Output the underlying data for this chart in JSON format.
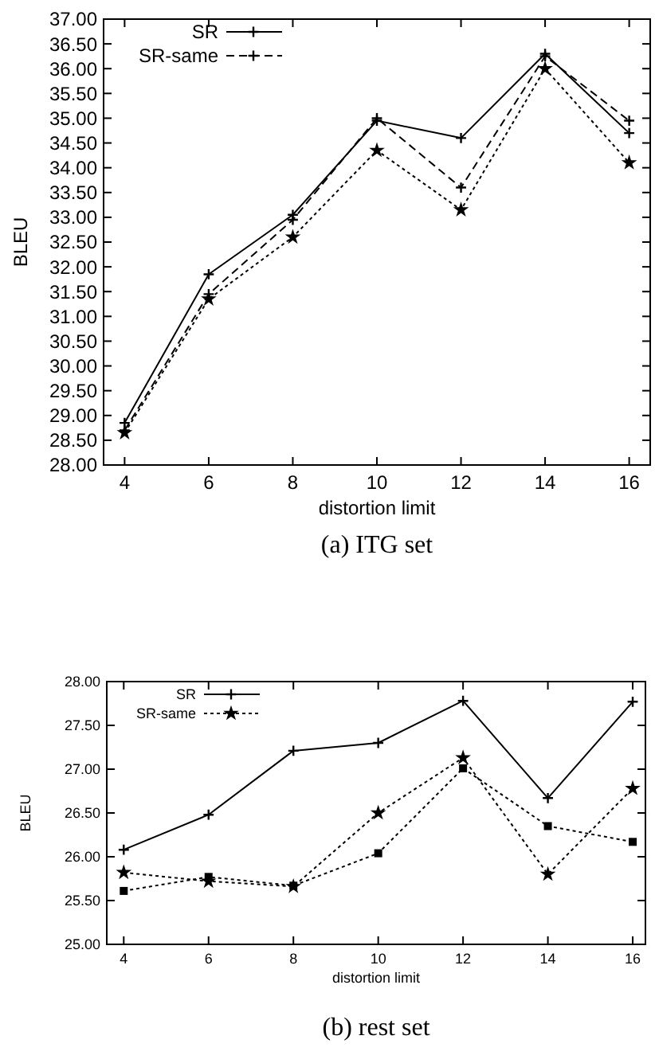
{
  "chart_data": [
    {
      "type": "line",
      "title": "(a)   ITG set",
      "xlabel": "distortion limit",
      "ylabel": "BLEU",
      "x": [
        4,
        6,
        8,
        10,
        12,
        14,
        16
      ],
      "xlim": [
        3.5,
        16.5
      ],
      "xticks": [
        4,
        6,
        8,
        10,
        12,
        14,
        16
      ],
      "ylim": [
        28,
        37
      ],
      "yticks": [
        {
          "value": 28,
          "label": "28.00"
        },
        {
          "value": 28.5,
          "label": "28.50"
        },
        {
          "value": 29,
          "label": "29.00"
        },
        {
          "value": 29.5,
          "label": "29.50"
        },
        {
          "value": 30,
          "label": "30.00"
        },
        {
          "value": 30.5,
          "label": "30.50"
        },
        {
          "value": 31,
          "label": "31.00"
        },
        {
          "value": 31.5,
          "label": "31.50"
        },
        {
          "value": 32,
          "label": "32.00"
        },
        {
          "value": 32.5,
          "label": "32.50"
        },
        {
          "value": 33,
          "label": "33.00"
        },
        {
          "value": 33.5,
          "label": "33.50"
        },
        {
          "value": 34,
          "label": "34.00"
        },
        {
          "value": 34.5,
          "label": "34.50"
        },
        {
          "value": 35,
          "label": "35.00"
        },
        {
          "value": 35.5,
          "label": "35.50"
        },
        {
          "value": 36,
          "label": "36.00"
        },
        {
          "value": 36.5,
          "label": "36.50"
        },
        {
          "value": 37,
          "label": "37.00"
        }
      ],
      "legend": "top left",
      "grid": false,
      "series": [
        {
          "name": "SR",
          "color": "#000000",
          "line_style": "solid",
          "marker": "cross",
          "values": [
            28.85,
            31.85,
            33.05,
            34.95,
            34.6,
            36.3,
            34.7
          ]
        },
        {
          "name": "SR-same",
          "color": "#000000",
          "line_style": "dashed",
          "marker": "cross",
          "values": [
            28.7,
            31.45,
            32.95,
            35.0,
            33.6,
            36.25,
            34.95
          ]
        },
        {
          "color": "#000000",
          "line_style": "dotted",
          "marker": "star",
          "values": [
            28.65,
            31.35,
            32.6,
            34.35,
            33.15,
            36.0,
            34.1
          ]
        }
      ]
    },
    {
      "type": "line",
      "title": "(b)   rest set",
      "xlabel": "distortion limit",
      "ylabel": "BLEU",
      "x": [
        4,
        6,
        8,
        10,
        12,
        14,
        16
      ],
      "xlim": [
        3.6,
        16.3
      ],
      "xticks": [
        4,
        6,
        8,
        10,
        12,
        14,
        16
      ],
      "ylim": [
        25,
        28
      ],
      "yticks": [
        {
          "value": 25,
          "label": "25.00"
        },
        {
          "value": 25.5,
          "label": "25.50"
        },
        {
          "value": 26,
          "label": "26.00"
        },
        {
          "value": 26.5,
          "label": "26.50"
        },
        {
          "value": 27,
          "label": "27.00"
        },
        {
          "value": 27.5,
          "label": "27.50"
        },
        {
          "value": 28,
          "label": "28.00"
        }
      ],
      "legend": "top left",
      "grid": false,
      "series": [
        {
          "name": "SR",
          "color": "#000000",
          "line_style": "solid",
          "marker": "cross",
          "values": [
            26.08,
            26.48,
            27.21,
            27.3,
            27.78,
            26.67,
            27.77
          ]
        },
        {
          "name": "SR-same",
          "color": "#000000",
          "line_style": "dotted",
          "marker": "star",
          "values": [
            25.82,
            25.72,
            25.66,
            26.5,
            27.13,
            25.8,
            26.78
          ]
        },
        {
          "color": "#000000",
          "line_style": "dotted",
          "marker": "square",
          "values": [
            25.61,
            25.77,
            25.67,
            26.04,
            27.01,
            26.35,
            26.17
          ]
        }
      ]
    }
  ]
}
